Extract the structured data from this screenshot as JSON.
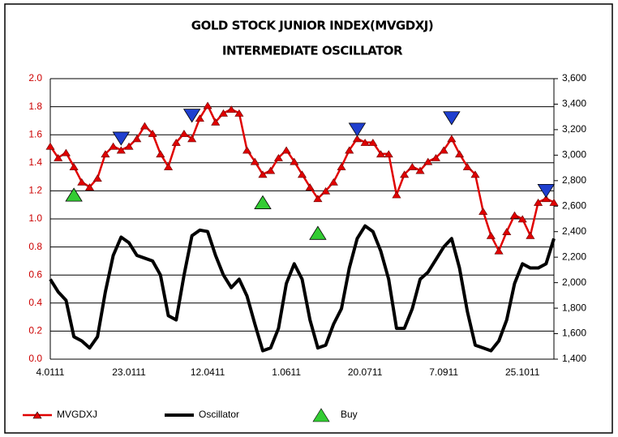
{
  "chart_data": {
    "type": "line",
    "title": "GOLD STOCK JUNIOR INDEX(MVGDXJ)",
    "subtitle": "INTERMEDIATE OSCILLATOR",
    "categories": [
      "4.0111",
      null,
      null,
      null,
      null,
      null,
      null,
      null,
      null,
      null,
      "23.0111",
      null,
      null,
      null,
      null,
      null,
      null,
      null,
      null,
      null,
      "12.0411",
      null,
      null,
      null,
      null,
      null,
      null,
      null,
      null,
      null,
      "1.0611",
      null,
      null,
      null,
      null,
      null,
      null,
      null,
      null,
      null,
      "20.0711",
      null,
      null,
      null,
      null,
      null,
      null,
      null,
      null,
      null,
      "7.0911",
      null,
      null,
      null,
      null,
      null,
      null,
      null,
      null,
      null,
      "25.1011",
      null,
      null,
      null,
      null
    ],
    "ylim": [
      0,
      2
    ],
    "yticks": [
      {
        "value": 0,
        "label": "0.0"
      },
      0.2,
      0.4,
      0.6,
      0.8,
      {
        "value": 1,
        "label": "1.0"
      },
      1.2,
      1.4,
      1.6,
      1.8,
      {
        "value": 2,
        "label": "2.0"
      }
    ],
    "y2lim": [
      1400,
      3600
    ],
    "y2ticks": [
      {
        "value": 1400,
        "label": "1,400"
      },
      {
        "value": 1600,
        "label": "1,600"
      },
      {
        "value": 1800,
        "label": "1,800"
      },
      {
        "value": 2000,
        "label": "2,000"
      },
      {
        "value": 2200,
        "label": "2,200"
      },
      {
        "value": 2400,
        "label": "2,400"
      },
      {
        "value": 2600,
        "label": "2,600"
      },
      {
        "value": 2800,
        "label": "2,800"
      },
      {
        "value": 3000,
        "label": "3,000"
      },
      {
        "value": 3200,
        "label": "3,200"
      },
      {
        "value": 3400,
        "label": "3,400"
      },
      {
        "value": 3600,
        "label": "3,600"
      }
    ],
    "grid": true,
    "legend": "bottom",
    "series": [
      {
        "name": "MVGDXJ",
        "color": "#e00000",
        "axis": "y2",
        "marker": "triangle",
        "line": true,
        "values": [
          3070,
          2980,
          3020,
          2910,
          2790,
          2750,
          2820,
          3010,
          3070,
          3040,
          3070,
          3130,
          3230,
          3170,
          3010,
          2910,
          3100,
          3170,
          3130,
          3290,
          3390,
          3260,
          3330,
          3360,
          3330,
          3040,
          2950,
          2850,
          2880,
          2980,
          3040,
          2950,
          2850,
          2750,
          2660,
          2720,
          2790,
          2910,
          3040,
          3130,
          3100,
          3100,
          3010,
          3010,
          2690,
          2850,
          2910,
          2880,
          2950,
          2980,
          3040,
          3130,
          3010,
          2910,
          2850,
          2560,
          2370,
          2250,
          2400,
          2530,
          2500,
          2370,
          2630,
          2660,
          2630
        ]
      },
      {
        "name": "Oscillator",
        "color": "#000000",
        "marker": "none",
        "line": true,
        "values": [
          0.57,
          0.48,
          0.42,
          0.16,
          0.13,
          0.08,
          0.16,
          0.48,
          0.74,
          0.87,
          0.83,
          0.74,
          0.72,
          0.7,
          0.6,
          0.31,
          0.28,
          0.6,
          0.88,
          0.92,
          0.91,
          0.74,
          0.6,
          0.51,
          0.57,
          0.45,
          0.25,
          0.06,
          0.08,
          0.22,
          0.54,
          0.68,
          0.57,
          0.28,
          0.08,
          0.1,
          0.25,
          0.36,
          0.65,
          0.86,
          0.95,
          0.91,
          0.77,
          0.57,
          0.22,
          0.22,
          0.36,
          0.57,
          0.62,
          0.71,
          0.8,
          0.86,
          0.65,
          0.34,
          0.1,
          0.08,
          0.06,
          0.13,
          0.28,
          0.54,
          0.68,
          0.65,
          0.65,
          0.68,
          0.86
        ]
      },
      {
        "name": "Buy",
        "color": "#33cc33",
        "axis": "y2",
        "marker": "triangle",
        "line": false,
        "values": [
          null,
          null,
          null,
          2690,
          null,
          null,
          null,
          null,
          null,
          null,
          null,
          null,
          null,
          null,
          null,
          null,
          null,
          null,
          null,
          null,
          null,
          null,
          null,
          null,
          null,
          null,
          null,
          2630,
          null,
          null,
          null,
          null,
          null,
          null,
          2390,
          null,
          null,
          null,
          null,
          null,
          null,
          null,
          null,
          null,
          null,
          null,
          null,
          null,
          null,
          null,
          null,
          null,
          null,
          null,
          null,
          null,
          null,
          null,
          null,
          null,
          null,
          null,
          null,
          null,
          null
        ]
      },
      {
        "color": "#1f3fcf",
        "axis": "y2",
        "marker": "triangle-down",
        "line": false,
        "values": [
          null,
          null,
          null,
          null,
          null,
          null,
          null,
          null,
          null,
          3130,
          null,
          null,
          null,
          null,
          null,
          null,
          null,
          null,
          3310,
          null,
          null,
          null,
          null,
          null,
          null,
          null,
          null,
          null,
          null,
          null,
          null,
          null,
          null,
          null,
          null,
          null,
          null,
          null,
          null,
          3200,
          null,
          null,
          null,
          null,
          null,
          null,
          null,
          null,
          null,
          null,
          null,
          3290,
          null,
          null,
          null,
          null,
          null,
          null,
          null,
          null,
          null,
          null,
          null,
          2720,
          null
        ]
      }
    ]
  }
}
